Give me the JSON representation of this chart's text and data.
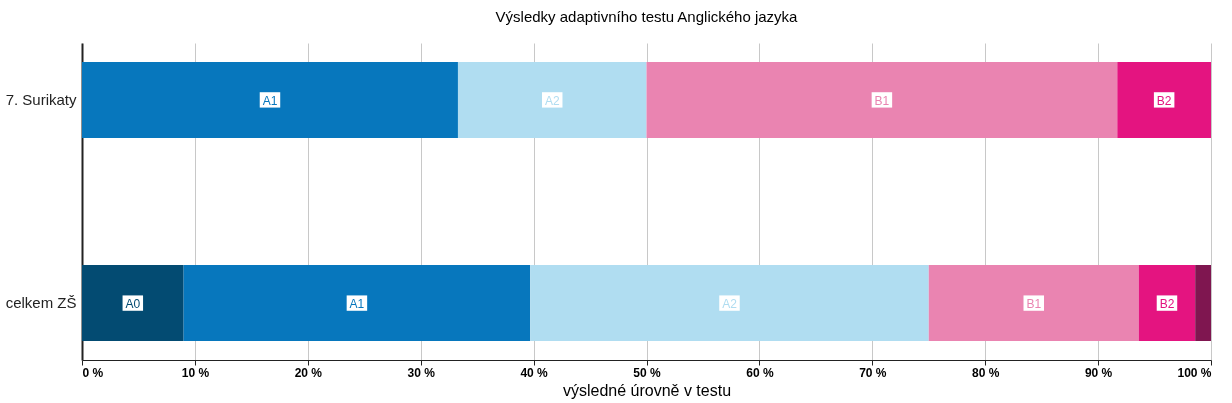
{
  "chart_data": {
    "type": "bar",
    "orientation": "horizontal",
    "stacked": true,
    "title": "Výsledky adaptivního testu Anglického jazyka",
    "xlabel": "výsledné úrovně v testu",
    "categories": [
      "7. Surikaty",
      "celkem ZŠ"
    ],
    "series": [
      {
        "name": "A0",
        "color": "#034b72",
        "values": [
          null,
          9.0
        ]
      },
      {
        "name": "A1",
        "color": "#0777bd",
        "values": [
          33.3,
          30.7
        ]
      },
      {
        "name": "A2",
        "color": "#b0ddf1",
        "values": [
          16.7,
          35.3
        ]
      },
      {
        "name": "B1",
        "color": "#ea84b1",
        "values": [
          41.7,
          18.6
        ]
      },
      {
        "name": "B2",
        "color": "#e41480",
        "values": [
          8.3,
          5.0
        ]
      },
      {
        "color": "#7f1650",
        "values": [
          null,
          1.4
        ]
      }
    ],
    "xlim": [
      0,
      100
    ],
    "xticks": [
      {
        "value": 0,
        "label": "0 %"
      },
      {
        "value": 10,
        "label": "10 %"
      },
      {
        "value": 20,
        "label": "20 %"
      },
      {
        "value": 30,
        "label": "30 %"
      },
      {
        "value": 40,
        "label": "40 %"
      },
      {
        "value": 50,
        "label": "50 %"
      },
      {
        "value": 60,
        "label": "60 %"
      },
      {
        "value": 70,
        "label": "70 %"
      },
      {
        "value": 80,
        "label": "80 %"
      },
      {
        "value": 90,
        "label": "90 %"
      },
      {
        "value": 100,
        "label": "100 %"
      }
    ],
    "grid": "x",
    "legend": false
  }
}
